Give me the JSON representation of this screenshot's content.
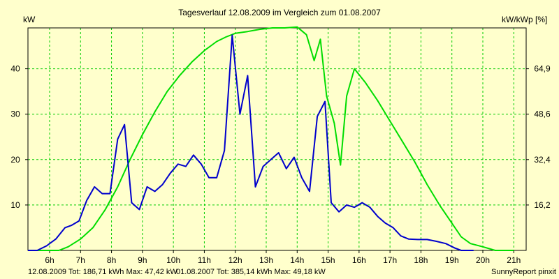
{
  "chart_data": {
    "type": "line",
    "title": "Tagesverlauf 12.08.2009 im Vergleich zum 01.08.2007",
    "ylabel_left": "kW",
    "ylabel_right": "kW/kWp [%]",
    "x_axis": {
      "range_h": [
        5.3,
        21.4
      ],
      "ticks": [
        6,
        7,
        8,
        9,
        10,
        11,
        12,
        13,
        14,
        15,
        16,
        17,
        18,
        19,
        20,
        21
      ],
      "tick_labels": [
        "6h",
        "7h",
        "8h",
        "9h",
        "10h",
        "11h",
        "12h",
        "13h",
        "14h",
        "15h",
        "16h",
        "17h",
        "18h",
        "19h",
        "20h",
        "21h"
      ]
    },
    "y_left": {
      "range": [
        0,
        49
      ],
      "ticks": [
        10,
        20,
        30,
        40
      ],
      "tick_labels": [
        "10",
        "20",
        "30",
        "40"
      ]
    },
    "y_right": {
      "ticks": [
        16.2,
        32.4,
        48.6,
        64.9
      ],
      "tick_labels": [
        "16,2",
        "32,4",
        "48,6",
        "64,9"
      ],
      "label_positions_kw": [
        10,
        20,
        30,
        40
      ]
    },
    "grid": true,
    "colors": {
      "background": "#ffffcc",
      "grid": "#00cc00",
      "series_2009": "#0000cc",
      "series_2007": "#00dd00"
    },
    "series": [
      {
        "name": "12.08.2009",
        "color": "#0000cc",
        "points": [
          [
            5.3,
            0
          ],
          [
            5.6,
            0
          ],
          [
            5.9,
            1
          ],
          [
            6.2,
            2.5
          ],
          [
            6.5,
            5
          ],
          [
            6.7,
            5.5
          ],
          [
            6.95,
            6.5
          ],
          [
            7.2,
            11
          ],
          [
            7.45,
            14
          ],
          [
            7.7,
            12.5
          ],
          [
            7.95,
            12.5
          ],
          [
            8.2,
            24.5
          ],
          [
            8.42,
            27.7
          ],
          [
            8.65,
            10.5
          ],
          [
            8.9,
            9
          ],
          [
            9.15,
            14
          ],
          [
            9.4,
            13
          ],
          [
            9.65,
            14.5
          ],
          [
            9.9,
            17
          ],
          [
            10.15,
            19
          ],
          [
            10.4,
            18.5
          ],
          [
            10.65,
            21
          ],
          [
            10.9,
            19
          ],
          [
            11.15,
            16
          ],
          [
            11.4,
            16
          ],
          [
            11.65,
            22
          ],
          [
            11.9,
            47.4
          ],
          [
            12.15,
            30
          ],
          [
            12.4,
            38.5
          ],
          [
            12.65,
            14
          ],
          [
            12.9,
            18.5
          ],
          [
            13.15,
            20
          ],
          [
            13.4,
            21.5
          ],
          [
            13.65,
            18
          ],
          [
            13.9,
            20.5
          ],
          [
            14.15,
            16
          ],
          [
            14.4,
            13
          ],
          [
            14.65,
            29.5
          ],
          [
            14.9,
            32.8
          ],
          [
            15.1,
            10.5
          ],
          [
            15.35,
            8.5
          ],
          [
            15.6,
            10
          ],
          [
            15.85,
            9.5
          ],
          [
            16.1,
            10.5
          ],
          [
            16.35,
            9.5
          ],
          [
            16.6,
            7.5
          ],
          [
            16.85,
            6
          ],
          [
            17.1,
            5
          ],
          [
            17.35,
            3.2
          ],
          [
            17.6,
            2.5
          ],
          [
            17.9,
            2.4
          ],
          [
            18.2,
            2.4
          ],
          [
            18.5,
            2
          ],
          [
            18.8,
            1.5
          ],
          [
            19.1,
            0.5
          ],
          [
            19.3,
            0
          ],
          [
            19.7,
            0
          ]
        ]
      },
      {
        "name": "01.08.2007",
        "color": "#00dd00",
        "points": [
          [
            5.3,
            0
          ],
          [
            6.3,
            0
          ],
          [
            6.6,
            0.8
          ],
          [
            7,
            2.5
          ],
          [
            7.4,
            5
          ],
          [
            7.8,
            9
          ],
          [
            8.2,
            14
          ],
          [
            8.6,
            20
          ],
          [
            9,
            25.5
          ],
          [
            9.4,
            30.5
          ],
          [
            9.8,
            35
          ],
          [
            10.2,
            38.5
          ],
          [
            10.6,
            41.5
          ],
          [
            11,
            44
          ],
          [
            11.4,
            46
          ],
          [
            11.7,
            47
          ],
          [
            12,
            47.8
          ],
          [
            12.4,
            48.2
          ],
          [
            12.8,
            48.7
          ],
          [
            13.2,
            49
          ],
          [
            13.6,
            49
          ],
          [
            14,
            49.2
          ],
          [
            14.3,
            47.5
          ],
          [
            14.55,
            41.8
          ],
          [
            14.75,
            46.5
          ],
          [
            14.95,
            34
          ],
          [
            15.2,
            28
          ],
          [
            15.4,
            18.8
          ],
          [
            15.6,
            34
          ],
          [
            15.85,
            40
          ],
          [
            16.2,
            37
          ],
          [
            16.6,
            33
          ],
          [
            17,
            28.5
          ],
          [
            17.4,
            24
          ],
          [
            17.8,
            19.5
          ],
          [
            18.2,
            14.5
          ],
          [
            18.6,
            10
          ],
          [
            19,
            6
          ],
          [
            19.3,
            3
          ],
          [
            19.6,
            1.5
          ],
          [
            20,
            0.8
          ],
          [
            20.4,
            0
          ],
          [
            21,
            0
          ]
        ]
      }
    ],
    "footer": {
      "s2009": "12.08.2009 Tot: 186,71 kWh Max: 47,42 kW",
      "s2007": "01.08.2007 Tot: 385,14 kWh Max: 49,18 kW",
      "credit": "SunnyReport pinxit"
    }
  }
}
